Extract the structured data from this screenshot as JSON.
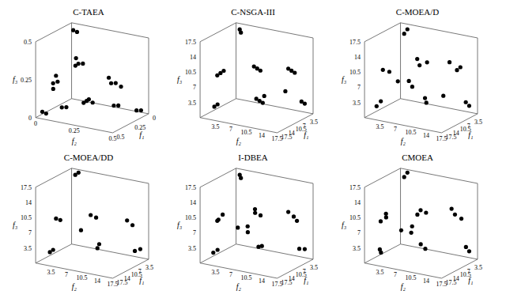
{
  "chart_data": [
    {
      "type": "scatter3d",
      "title": "C-TAEA",
      "x_label": "f₁",
      "y_label": "f₂",
      "z_label": "f₃",
      "color": "#000000",
      "marker": "circle",
      "xlim": [
        0,
        0.5
      ],
      "ylim": [
        0,
        0.5
      ],
      "zlim": [
        0,
        0.5
      ],
      "xticks": [
        0,
        0.25,
        0.5
      ],
      "yticks": [
        0,
        0.25,
        0.5
      ],
      "zticks": [
        0,
        0.25,
        0.5
      ],
      "x": [
        0.02,
        0.01,
        0.3,
        0.28,
        0.32,
        0.26,
        0.12,
        0.1,
        0.14,
        0.11,
        0.03,
        0.05,
        0.02,
        0.04,
        0.22,
        0.2,
        0.24,
        0.21,
        0.45,
        0.44,
        0.02,
        0.04,
        0.1,
        0.12,
        0.35,
        0.33
      ],
      "y": [
        0.02,
        0.04,
        0.02,
        0.04,
        0.03,
        0.02,
        0.1,
        0.12,
        0.09,
        0.08,
        0.3,
        0.28,
        0.33,
        0.26,
        0.2,
        0.23,
        0.19,
        0.21,
        0.02,
        0.04,
        0.46,
        0.44,
        0.35,
        0.33,
        0.1,
        0.12
      ],
      "z": [
        0.46,
        0.45,
        0.18,
        0.19,
        0.15,
        0.22,
        0.28,
        0.28,
        0.27,
        0.31,
        0.17,
        0.17,
        0.15,
        0.2,
        0.08,
        0.07,
        0.07,
        0.09,
        0.03,
        0.02,
        0.02,
        0.02,
        0.05,
        0.05,
        0.05,
        0.05
      ]
    },
    {
      "type": "scatter3d",
      "title": "C-NSGA-III",
      "x_label": "f₁",
      "y_label": "f₂",
      "z_label": "f₃",
      "color": "#000000",
      "marker": "circle",
      "xlim": [
        0,
        17.5
      ],
      "ylim": [
        0,
        17.5
      ],
      "zlim": [
        0,
        17.5
      ],
      "xticks": [
        3.5,
        7,
        10.5,
        14,
        17.5
      ],
      "yticks": [
        3.5,
        7,
        10.5,
        14,
        17.5
      ],
      "zticks": [
        3.5,
        7,
        10.5,
        14,
        17.5
      ],
      "x": [
        2.5,
        3.0,
        14.0,
        13.5,
        14.5,
        3.0,
        3.5,
        2.5,
        9.0,
        9.5,
        8.5,
        10.0,
        10.5,
        9.5,
        17.0,
        16.5,
        3.0,
        3.5,
        12,
        6
      ],
      "y": [
        2.0,
        2.5,
        3.0,
        3.5,
        2.5,
        14.0,
        13.5,
        14.5,
        9.0,
        8.5,
        9.5,
        10.0,
        9.5,
        10.5,
        3.0,
        3.5,
        17.0,
        16.5,
        12,
        14
      ],
      "z": [
        17.0,
        16.5,
        10.0,
        10.5,
        9.5,
        10.0,
        10.5,
        9.5,
        11.0,
        11.5,
        10.5,
        4.0,
        4.5,
        3.5,
        3.0,
        3.5,
        3.0,
        3.5,
        6,
        6
      ]
    },
    {
      "type": "scatter3d",
      "title": "C-MOEA/D",
      "x_label": "f₁",
      "y_label": "f₂",
      "z_label": "f₃",
      "color": "#000000",
      "marker": "circle",
      "xlim": [
        0,
        17.5
      ],
      "ylim": [
        0,
        17.5
      ],
      "zlim": [
        0,
        17.5
      ],
      "xticks": [
        3.5,
        7,
        10.5,
        14,
        17.5
      ],
      "yticks": [
        3.5,
        7,
        10.5,
        14,
        17.5
      ],
      "zticks": [
        3.5,
        7,
        10.5,
        14,
        17.5
      ],
      "x": [
        2,
        2.5,
        15,
        14,
        3,
        2.5,
        4,
        9,
        10,
        8.5,
        11,
        9.5,
        17,
        16,
        3,
        2.5,
        12,
        7,
        5,
        4.5
      ],
      "y": [
        2.5,
        2,
        3,
        4,
        15,
        14,
        13,
        8,
        9,
        10,
        11,
        10,
        2.5,
        3,
        17,
        16,
        5,
        13,
        5,
        4
      ],
      "z": [
        17,
        16,
        11,
        10.5,
        11,
        10,
        12,
        13,
        12,
        12.5,
        4,
        4.5,
        3,
        4,
        2.5,
        3,
        8,
        5,
        5,
        6
      ]
    },
    {
      "type": "scatter3d",
      "title": "C-MOEA/DD",
      "x_label": "f₁",
      "y_label": "f₂",
      "z_label": "f₃",
      "color": "#000000",
      "marker": "circle",
      "xlim": [
        0,
        17.5
      ],
      "ylim": [
        0,
        17.5
      ],
      "zlim": [
        0,
        17.5
      ],
      "xticks": [
        3.5,
        7,
        10.5,
        14,
        17.5
      ],
      "yticks": [
        3.5,
        7,
        10.5,
        14,
        17.5
      ],
      "zticks": [
        3.5,
        7,
        10.5,
        14,
        17.5
      ],
      "x": [
        2,
        2.5,
        14,
        13,
        3,
        2.5,
        10,
        9.5,
        11,
        17,
        16.5,
        3,
        3.5,
        8,
        4
      ],
      "y": [
        2.5,
        2,
        3,
        3.5,
        14,
        15,
        9,
        10,
        11,
        3,
        3.5,
        17,
        16,
        10,
        4
      ],
      "z": [
        17.5,
        17,
        10,
        9.5,
        9,
        8,
        11,
        10.5,
        4,
        3,
        3.5,
        3,
        2.5,
        4,
        5
      ]
    },
    {
      "type": "scatter3d",
      "title": "I-DBEA",
      "x_label": "f₁",
      "y_label": "f₂",
      "z_label": "f₃",
      "color": "#000000",
      "marker": "circle",
      "xlim": [
        0,
        17.5
      ],
      "ylim": [
        0,
        17.5
      ],
      "zlim": [
        0,
        17.5
      ],
      "xticks": [
        3.5,
        7,
        10.5,
        14,
        17.5
      ],
      "yticks": [
        3.5,
        7,
        10.5,
        14,
        17.5
      ],
      "zticks": [
        3.5,
        7,
        10.5,
        14,
        17.5
      ],
      "x": [
        2.5,
        3,
        15,
        14,
        14.5,
        3,
        3.5,
        2.5,
        9,
        10,
        9.5,
        10.5,
        11,
        17.5,
        16.5,
        3,
        3.5,
        12,
        5,
        4
      ],
      "y": [
        2,
        2.5,
        3,
        3.5,
        2.5,
        14.5,
        13.5,
        15,
        8.5,
        9,
        10,
        10,
        11,
        3,
        3.5,
        17,
        16,
        6,
        5,
        4.5
      ],
      "z": [
        17,
        16.5,
        10,
        11,
        9.5,
        10,
        11,
        9,
        12,
        11.5,
        11,
        4,
        4.5,
        3,
        3.5,
        3,
        3,
        8,
        5,
        6
      ]
    },
    {
      "type": "scatter3d",
      "title": "CMOEA",
      "x_label": "f₁",
      "y_label": "f₂",
      "z_label": "f₃",
      "color": "#000000",
      "marker": "circle",
      "xlim": [
        0,
        17.5
      ],
      "ylim": [
        0,
        17.5
      ],
      "zlim": [
        0,
        17.5
      ],
      "xticks": [
        3.5,
        7,
        10.5,
        14,
        17.5
      ],
      "yticks": [
        3.5,
        7,
        10.5,
        14,
        17.5
      ],
      "zticks": [
        3.5,
        7,
        10.5,
        14,
        17.5
      ],
      "x": [
        2,
        2.5,
        14.5,
        13.5,
        15,
        3.5,
        3,
        2.5,
        9.5,
        10,
        9,
        10.5,
        11.5,
        17,
        16.5,
        3.5,
        3,
        12.5,
        5.5,
        4
      ],
      "y": [
        2.5,
        2,
        3.5,
        3,
        2.5,
        14,
        13,
        15,
        9,
        8.5,
        10,
        9.5,
        11,
        3.5,
        3,
        16.5,
        17,
        6,
        5,
        4.5
      ],
      "z": [
        17.5,
        16.5,
        10.5,
        11,
        9.5,
        10.5,
        11.5,
        9.5,
        12,
        11,
        11.5,
        4.5,
        4,
        3,
        3.5,
        3.5,
        2.5,
        7.5,
        5,
        6
      ]
    }
  ]
}
